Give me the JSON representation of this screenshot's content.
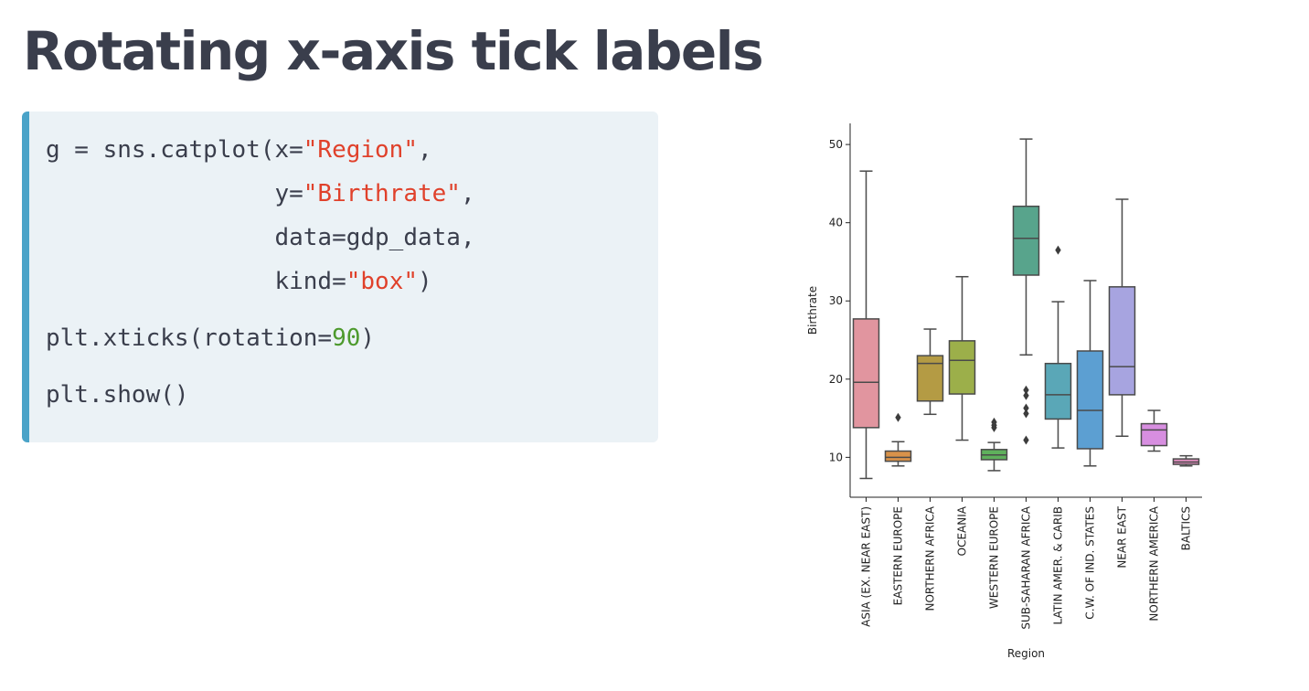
{
  "slide": {
    "title": "Rotating x-axis tick labels"
  },
  "code": {
    "lines": [
      [
        {
          "t": "g = sns.catplot(x=",
          "c": "p"
        },
        {
          "t": "\"Region\"",
          "c": "s"
        },
        {
          "t": ",",
          "c": "p"
        }
      ],
      [
        {
          "t": "                y=",
          "c": "p"
        },
        {
          "t": "\"Birthrate\"",
          "c": "s"
        },
        {
          "t": ",",
          "c": "p"
        }
      ],
      [
        {
          "t": "                data=gdp_data,",
          "c": "p"
        }
      ],
      [
        {
          "t": "                kind=",
          "c": "p"
        },
        {
          "t": "\"box\"",
          "c": "s"
        },
        {
          "t": ")",
          "c": "p"
        }
      ],
      [
        {
          "t": "plt.xticks(rotation=",
          "c": "p"
        },
        {
          "t": "90",
          "c": "n"
        },
        {
          "t": ")",
          "c": "p"
        }
      ],
      [
        {
          "t": "plt.show()",
          "c": "p"
        }
      ]
    ]
  },
  "chart_data": {
    "type": "box",
    "xlabel": "Region",
    "ylabel": "Birthrate",
    "ylim": [
      4.9,
      52.7
    ],
    "yticks": [
      10,
      20,
      30,
      40,
      50
    ],
    "xtick_rotation": 90,
    "grid": false,
    "categories": [
      "ASIA (EX. NEAR EAST)",
      "EASTERN EUROPE",
      "NORTHERN AFRICA",
      "OCEANIA",
      "WESTERN EUROPE",
      "SUB-SAHARAN AFRICA",
      "LATIN AMER. & CARIB",
      "C.W. OF IND. STATES",
      "NEAR EAST",
      "NORTHERN AMERICA",
      "BALTICS"
    ],
    "colors": [
      "#e1959f",
      "#d8924a",
      "#b49b44",
      "#9caf4a",
      "#5fb05c",
      "#58a48c",
      "#5aa7b7",
      "#5c9fd2",
      "#a7a4e0",
      "#d78ee0",
      "#e28ec0"
    ],
    "boxes": [
      {
        "whislo": 7.3,
        "q1": 13.8,
        "med": 19.6,
        "q3": 27.7,
        "whishi": 46.6,
        "fliers": []
      },
      {
        "whislo": 8.9,
        "q1": 9.5,
        "med": 10.0,
        "q3": 10.8,
        "whishi": 12.0,
        "fliers": [
          15.1
        ]
      },
      {
        "whislo": 15.5,
        "q1": 17.2,
        "med": 22.0,
        "q3": 23.0,
        "whishi": 26.4,
        "fliers": []
      },
      {
        "whislo": 12.2,
        "q1": 18.1,
        "med": 22.4,
        "q3": 24.9,
        "whishi": 33.1,
        "fliers": []
      },
      {
        "whislo": 8.3,
        "q1": 9.7,
        "med": 10.3,
        "q3": 11.0,
        "whishi": 11.9,
        "fliers": [
          13.8,
          14.1,
          14.5
        ]
      },
      {
        "whislo": 23.1,
        "q1": 33.3,
        "med": 38.0,
        "q3": 42.1,
        "whishi": 50.7,
        "fliers": [
          12.2,
          15.6,
          16.3,
          17.9,
          18.6
        ]
      },
      {
        "whislo": 11.2,
        "q1": 14.9,
        "med": 18.0,
        "q3": 22.0,
        "whishi": 29.9,
        "fliers": [
          36.5
        ]
      },
      {
        "whislo": 8.9,
        "q1": 11.1,
        "med": 16.0,
        "q3": 23.6,
        "whishi": 32.6,
        "fliers": []
      },
      {
        "whislo": 12.7,
        "q1": 18.0,
        "med": 21.6,
        "q3": 31.8,
        "whishi": 43.0,
        "fliers": []
      },
      {
        "whislo": 10.8,
        "q1": 11.5,
        "med": 13.5,
        "q3": 14.3,
        "whishi": 16.0,
        "fliers": []
      },
      {
        "whislo": 8.9,
        "q1": 9.1,
        "med": 9.4,
        "q3": 9.8,
        "whishi": 10.2,
        "fliers": []
      }
    ]
  }
}
